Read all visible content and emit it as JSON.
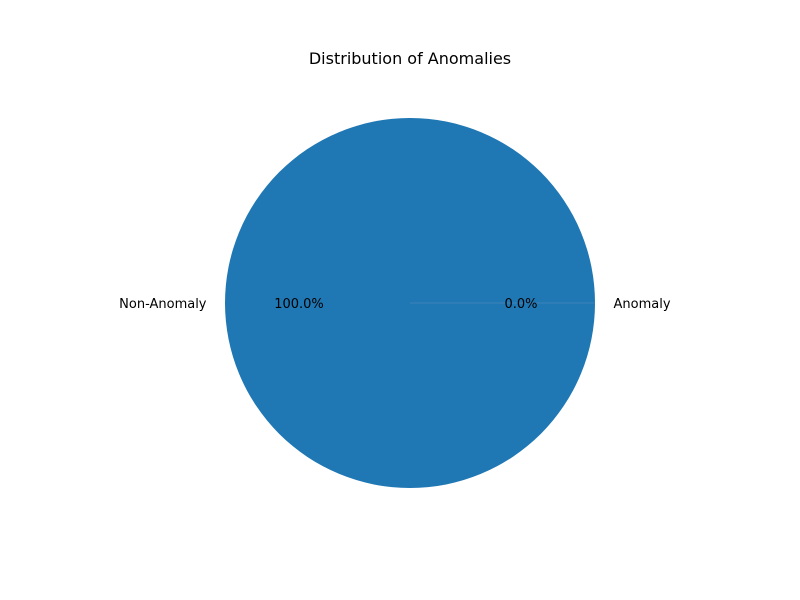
{
  "chart_data": {
    "type": "pie",
    "title": "Distribution of Anomalies",
    "slices": [
      {
        "label": "Non-Anomaly",
        "value": 100.0,
        "percent_label": "100.0%",
        "color": "#1f77b4"
      },
      {
        "label": "Anomaly",
        "value": 0.0,
        "percent_label": "0.0%",
        "color": "#ff7f0e"
      }
    ],
    "legend": "none"
  }
}
